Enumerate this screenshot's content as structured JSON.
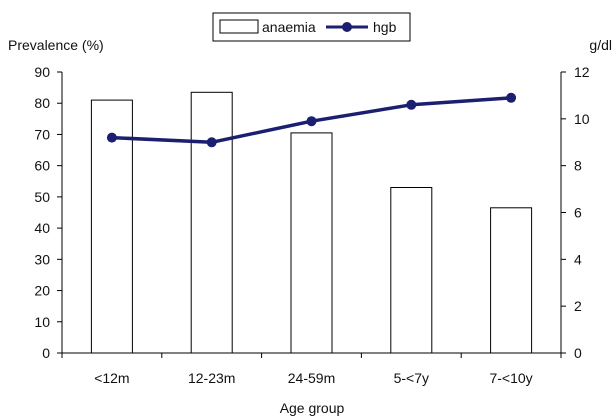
{
  "chart_data": {
    "type": "bar",
    "xlabel": "Age group",
    "ylabel_left": "Prevalence (%)",
    "ylabel_right": "g/dl",
    "categories": [
      "<12m",
      "12-23m",
      "24-59m",
      "5-<7y",
      "7-<10y"
    ],
    "y_left_lim": [
      0,
      90
    ],
    "y_left_ticks": [
      0,
      10,
      20,
      30,
      40,
      50,
      60,
      70,
      80,
      90
    ],
    "y_right_lim": [
      0,
      12
    ],
    "y_right_ticks": [
      0,
      2,
      4,
      6,
      8,
      10,
      12
    ],
    "series": [
      {
        "name": "anaemia",
        "type": "bar",
        "axis": "left",
        "values": [
          81,
          83.5,
          70.5,
          53,
          46.5
        ]
      },
      {
        "name": "hgb",
        "type": "line",
        "axis": "right",
        "values": [
          9.2,
          9.0,
          9.9,
          10.6,
          10.9
        ]
      }
    ],
    "grid": false,
    "legend": "top-center"
  },
  "colors": {
    "bar_fill": "#ffffff",
    "bar_stroke": "#000000",
    "line": "#1c1f70",
    "axis": "#000000"
  }
}
